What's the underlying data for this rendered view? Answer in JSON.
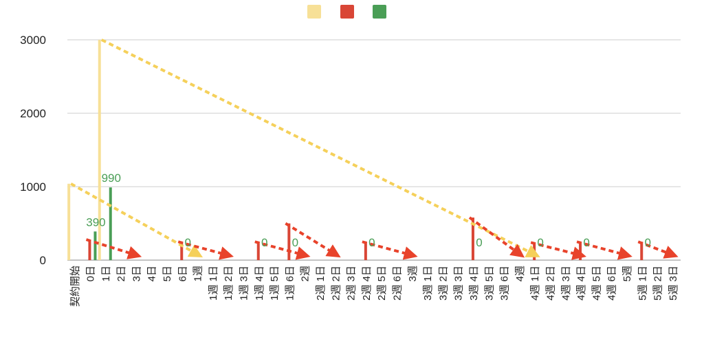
{
  "chart_data": {
    "type": "bar",
    "title": "",
    "xlabel": "",
    "ylabel": "",
    "ylim": [
      0,
      3000
    ],
    "y_ticks": [
      0,
      1000,
      2000,
      3000
    ],
    "grid": true,
    "legend": "top-center",
    "series": [
      {
        "color": "#f7e097"
      },
      {
        "color": "#d94636"
      },
      {
        "color": "#4a9e56"
      }
    ],
    "categories": [
      "契約開始",
      "0日",
      "1日",
      "2日",
      "3日",
      "4日",
      "5日",
      "6日",
      "1週",
      "1週 1日",
      "1週 2日",
      "1週 3日",
      "1週 4日",
      "1週 5日",
      "1週 6日",
      "2週",
      "2週 1日",
      "2週 2日",
      "2週 3日",
      "2週 4日",
      "2週 5日",
      "2週 6日",
      "3週",
      "3週 1日",
      "3週 2日",
      "3週 3日",
      "3週 4日",
      "3週 5日",
      "3週 6日",
      "4週",
      "4週 1日",
      "4週 2日",
      "4週 3日",
      "4週 4日",
      "4週 5日",
      "4週 6日",
      "5週",
      "5週 1日",
      "5週 2日",
      "5週 3日"
    ],
    "bars": [
      {
        "category": "契約開始",
        "series": 0,
        "value": 1040
      },
      {
        "category": "0日",
        "series": 1,
        "value": 280
      },
      {
        "category": "0日",
        "series": 2,
        "value": 390,
        "label": "390"
      },
      {
        "category": "1日",
        "series": 0,
        "value": 3000
      },
      {
        "category": "1日",
        "series": 2,
        "value": 990,
        "label": "990"
      },
      {
        "category": "6日",
        "series": 1,
        "value": 250
      },
      {
        "category": "6日",
        "series": 2,
        "value": 0,
        "label": "0"
      },
      {
        "category": "1週 4日",
        "series": 1,
        "value": 250
      },
      {
        "category": "1週 4日",
        "series": 2,
        "value": 0,
        "label": "0"
      },
      {
        "category": "1週 6日",
        "series": 1,
        "value": 500
      },
      {
        "category": "1週 6日",
        "series": 2,
        "value": 0,
        "label": "0"
      },
      {
        "category": "2週 4日",
        "series": 1,
        "value": 250
      },
      {
        "category": "2週 4日",
        "series": 2,
        "value": 0,
        "label": "0"
      },
      {
        "category": "3週 4日",
        "series": 1,
        "value": 580
      },
      {
        "category": "3週 4日",
        "series": 2,
        "value": 0,
        "label": "0"
      },
      {
        "category": "4週 1日",
        "series": 1,
        "value": 240
      },
      {
        "category": "4週 1日",
        "series": 2,
        "value": 0,
        "label": "0"
      },
      {
        "category": "4週 4日",
        "series": 1,
        "value": 250
      },
      {
        "category": "4週 4日",
        "series": 2,
        "value": 0,
        "label": "0"
      },
      {
        "category": "5週 1日",
        "series": 1,
        "value": 250
      },
      {
        "category": "5週 1日",
        "series": 2,
        "value": 0,
        "label": "0"
      }
    ],
    "arrows": [
      {
        "color": "#f5d05a",
        "from": [
          "契約開始",
          1040
        ],
        "to": [
          "1週",
          0
        ]
      },
      {
        "color": "#f5d05a",
        "from": [
          "1日",
          3000
        ],
        "to": [
          "4週 1日",
          0
        ]
      },
      {
        "color": "#e8432b",
        "from": [
          "0日",
          280
        ],
        "to": [
          "3日",
          0
        ]
      },
      {
        "color": "#e8432b",
        "from": [
          "6日",
          250
        ],
        "to": [
          "1週 2日",
          0
        ]
      },
      {
        "color": "#e8432b",
        "from": [
          "1週 4日",
          250
        ],
        "to": [
          "2週",
          0
        ]
      },
      {
        "color": "#e8432b",
        "from": [
          "1週 6日",
          500
        ],
        "to": [
          "2週 2日",
          0
        ]
      },
      {
        "color": "#e8432b",
        "from": [
          "2週 4日",
          250
        ],
        "to": [
          "3週",
          0
        ]
      },
      {
        "color": "#e8432b",
        "from": [
          "3週 4日",
          580
        ],
        "to": [
          "4週",
          0
        ]
      },
      {
        "color": "#e8432b",
        "from": [
          "4週 1日",
          240
        ],
        "to": [
          "4週 4日",
          0
        ]
      },
      {
        "color": "#e8432b",
        "from": [
          "4週 4日",
          250
        ],
        "to": [
          "5週",
          0
        ]
      },
      {
        "color": "#e8432b",
        "from": [
          "5週 1日",
          250
        ],
        "to": [
          "5週 3日",
          0
        ]
      }
    ]
  }
}
